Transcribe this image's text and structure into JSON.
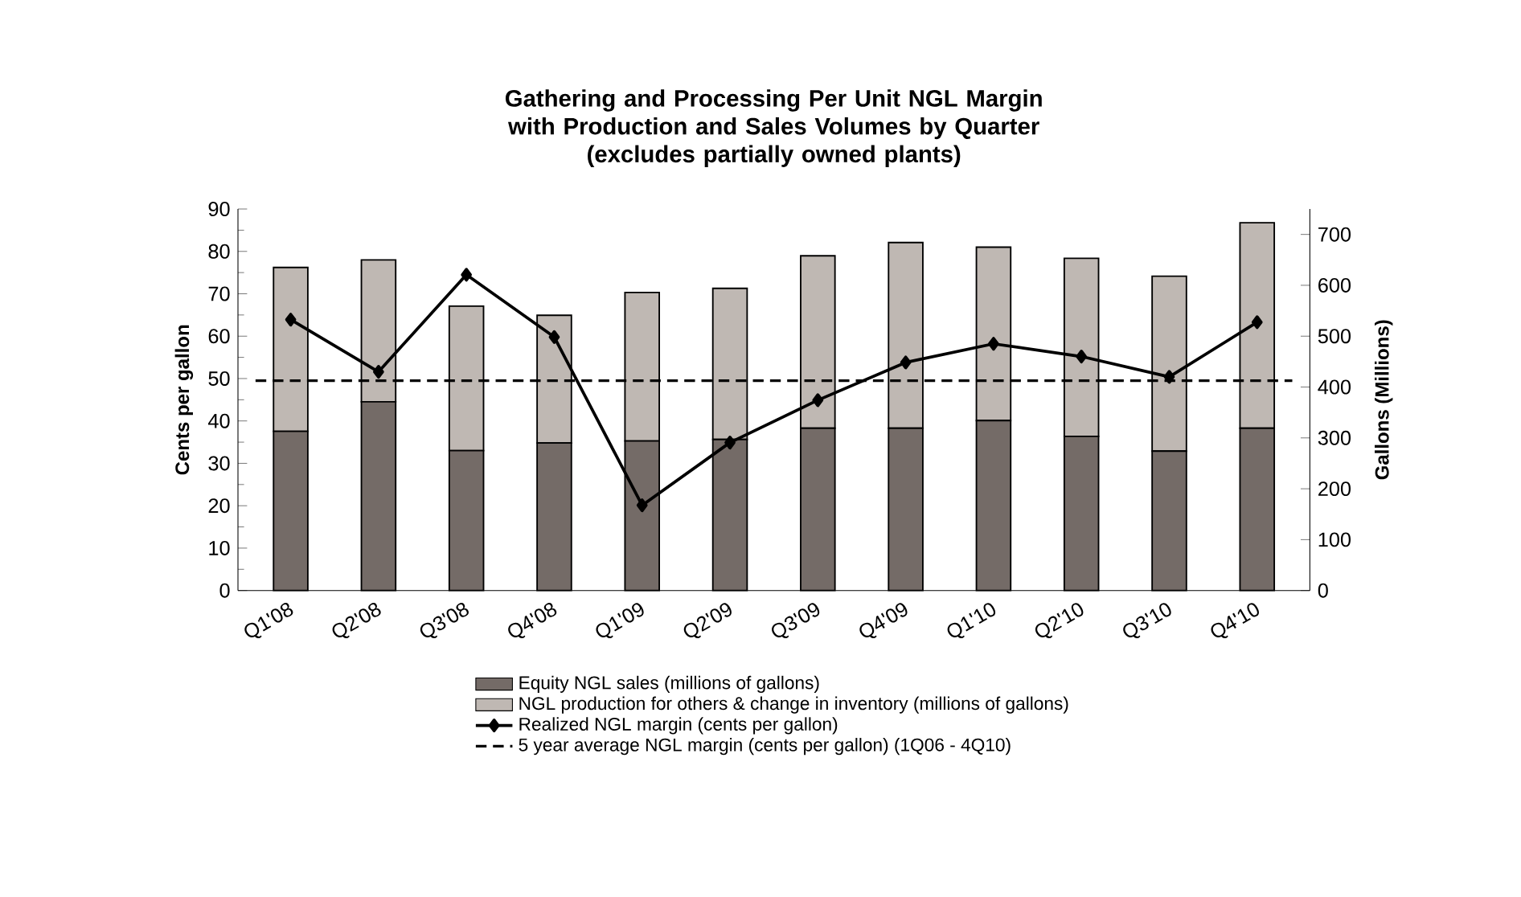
{
  "chart_data": {
    "type": "bar",
    "stacked": true,
    "title": "Gathering and Processing Per Unit NGL Margin with Production and Sales Volumes by Quarter",
    "subtitle": "(excludes partially owned plants)",
    "categories": [
      "Q1'08",
      "Q2'08",
      "Q3'08",
      "Q4'08",
      "Q1'09",
      "Q2'09",
      "Q3'09",
      "Q4'09",
      "Q1'10",
      "Q2'10",
      "Q3'10",
      "Q4'10"
    ],
    "ylabel": "Cents per gallon",
    "y2label": "Gallons (Millions)",
    "ylim": [
      0,
      90
    ],
    "yticks": [
      0,
      10,
      20,
      30,
      40,
      50,
      60,
      70,
      80,
      90
    ],
    "y2lim": [
      0,
      750
    ],
    "y2ticks": [
      0,
      100,
      200,
      300,
      400,
      500,
      600,
      700
    ],
    "series": [
      {
        "name": "Equity NGL sales (millions of gallons)",
        "color": "#746b67",
        "axis": "y2",
        "values": [
          313,
          371,
          275,
          290,
          294,
          297,
          319,
          319,
          334,
          303,
          274,
          319
        ]
      },
      {
        "name": "NGL production for others & change in inventory (millions of gallons)",
        "color": "#bfb8b3",
        "axis": "y2",
        "values": [
          322,
          279,
          284,
          251,
          292,
          297,
          339,
          365,
          341,
          350,
          344,
          404
        ]
      },
      {
        "name": "Realized NGL margin (cents per gallon)",
        "type": "line",
        "color": "#000000",
        "marker": "diamond",
        "values": [
          63.9,
          51.6,
          74.5,
          59.8,
          20.1,
          34.9,
          44.9,
          53.8,
          58.2,
          55.2,
          50.4,
          63.3
        ]
      }
    ],
    "ref_lines": [
      {
        "axis": "y",
        "value": 49.5,
        "label": "5 year average NGL margin (cents per gallon) (1Q06 - 4Q10)",
        "color": "#000000",
        "line_style": "dashed"
      }
    ],
    "legend": "bottom"
  }
}
